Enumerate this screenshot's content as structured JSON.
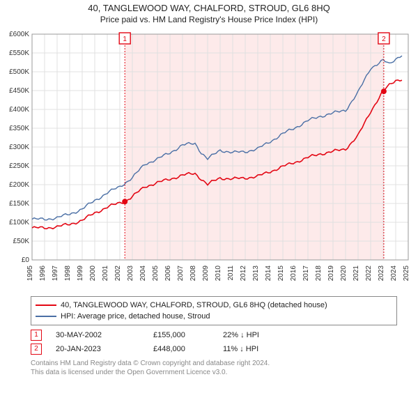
{
  "title": "40, TANGLEWOOD WAY, CHALFORD, STROUD, GL6 8HQ",
  "subtitle": "Price paid vs. HM Land Registry's House Price Index (HPI)",
  "chart": {
    "type": "line",
    "background_color": "#ffffff",
    "plot_background_color": "#ffffff",
    "grid_color": "#e0e0e0",
    "axis_color": "#333333",
    "ylabel_prefix": "£",
    "ylim": [
      0,
      600000
    ],
    "ytick_step": 50000,
    "yticks": [
      "£0",
      "£50K",
      "£100K",
      "£150K",
      "£200K",
      "£250K",
      "£300K",
      "£350K",
      "£400K",
      "£450K",
      "£500K",
      "£550K",
      "£600K"
    ],
    "xlim": [
      1995,
      2025
    ],
    "xticks": [
      1995,
      1996,
      1997,
      1998,
      1999,
      2000,
      2001,
      2002,
      2003,
      2004,
      2005,
      2006,
      2007,
      2008,
      2009,
      2010,
      2011,
      2012,
      2013,
      2014,
      2015,
      2016,
      2017,
      2018,
      2019,
      2020,
      2021,
      2022,
      2023,
      2024,
      2025
    ],
    "label_fontsize": 11,
    "tick_fontsize": 10,
    "series": [
      {
        "name": "property",
        "label": "40, TANGLEWOOD WAY, CHALFORD, STROUD, GL6 8HQ (detached house)",
        "color": "#e30613",
        "line_width": 1.6,
        "data": [
          [
            1995,
            85000
          ],
          [
            1996,
            85000
          ],
          [
            1997,
            88000
          ],
          [
            1998,
            95000
          ],
          [
            1999,
            105000
          ],
          [
            2000,
            125000
          ],
          [
            2001,
            140000
          ],
          [
            2002,
            152000
          ],
          [
            2002.4,
            155000
          ],
          [
            2003,
            168000
          ],
          [
            2004,
            195000
          ],
          [
            2005,
            205000
          ],
          [
            2006,
            215000
          ],
          [
            2007,
            225000
          ],
          [
            2008,
            230000
          ],
          [
            2008.5,
            215000
          ],
          [
            2009,
            200000
          ],
          [
            2009.5,
            210000
          ],
          [
            2010,
            218000
          ],
          [
            2011,
            215000
          ],
          [
            2012,
            218000
          ],
          [
            2013,
            222000
          ],
          [
            2014,
            235000
          ],
          [
            2015,
            248000
          ],
          [
            2016,
            260000
          ],
          [
            2017,
            272000
          ],
          [
            2018,
            282000
          ],
          [
            2019,
            288000
          ],
          [
            2020,
            295000
          ],
          [
            2021,
            330000
          ],
          [
            2022,
            395000
          ],
          [
            2023,
            448000
          ],
          [
            2023.5,
            465000
          ],
          [
            2024,
            478000
          ],
          [
            2024.5,
            480000
          ]
        ]
      },
      {
        "name": "hpi",
        "label": "HPI: Average price, detached house, Stroud",
        "color": "#4a6fa5",
        "line_width": 1.4,
        "data": [
          [
            1995,
            108000
          ],
          [
            1996,
            108000
          ],
          [
            1997,
            112000
          ],
          [
            1998,
            122000
          ],
          [
            1999,
            135000
          ],
          [
            2000,
            158000
          ],
          [
            2001,
            178000
          ],
          [
            2002,
            195000
          ],
          [
            2003,
            218000
          ],
          [
            2004,
            255000
          ],
          [
            2005,
            268000
          ],
          [
            2006,
            285000
          ],
          [
            2007,
            305000
          ],
          [
            2008,
            310000
          ],
          [
            2008.5,
            285000
          ],
          [
            2009,
            268000
          ],
          [
            2009.5,
            280000
          ],
          [
            2010,
            292000
          ],
          [
            2011,
            285000
          ],
          [
            2012,
            288000
          ],
          [
            2013,
            295000
          ],
          [
            2014,
            315000
          ],
          [
            2015,
            335000
          ],
          [
            2016,
            352000
          ],
          [
            2017,
            370000
          ],
          [
            2018,
            382000
          ],
          [
            2019,
            390000
          ],
          [
            2020,
            398000
          ],
          [
            2021,
            445000
          ],
          [
            2022,
            510000
          ],
          [
            2023,
            530000
          ],
          [
            2023.5,
            520000
          ],
          [
            2024,
            535000
          ],
          [
            2024.5,
            545000
          ]
        ]
      }
    ],
    "markers": [
      {
        "n": "1",
        "x": 2002.4,
        "y": 155000,
        "color": "#e30613",
        "shade_band": true,
        "label_y_offset": -330
      },
      {
        "n": "2",
        "x": 2023.05,
        "y": 448000,
        "color": "#e30613",
        "shade_band": true,
        "label_y_offset": -330
      }
    ],
    "shade_color": "#fdeaea"
  },
  "legend": {
    "items": [
      {
        "color": "#e30613",
        "label": "40, TANGLEWOOD WAY, CHALFORD, STROUD, GL6 8HQ (detached house)"
      },
      {
        "color": "#4a6fa5",
        "label": "HPI: Average price, detached house, Stroud"
      }
    ]
  },
  "data_points": [
    {
      "n": "1",
      "color": "#e30613",
      "date": "30-MAY-2002",
      "price": "£155,000",
      "pct": "22% ↓ HPI"
    },
    {
      "n": "2",
      "color": "#e30613",
      "date": "20-JAN-2023",
      "price": "£448,000",
      "pct": "11% ↓ HPI"
    }
  ],
  "copyright": {
    "line1": "Contains HM Land Registry data © Crown copyright and database right 2024.",
    "line2": "This data is licensed under the Open Government Licence v3.0."
  }
}
